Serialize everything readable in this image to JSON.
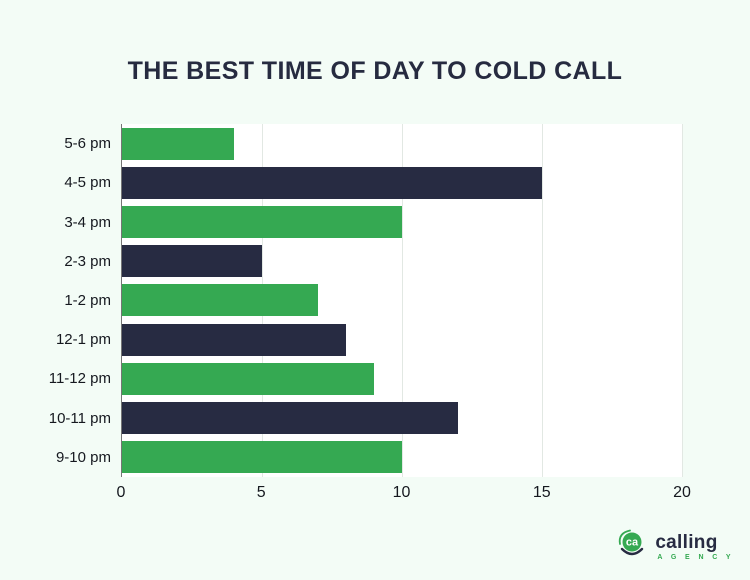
{
  "title": "THE BEST TIME OF DAY TO COLD CALL",
  "chart_data": {
    "type": "bar",
    "orientation": "horizontal",
    "title": "THE BEST TIME OF DAY TO COLD CALL",
    "categories": [
      "5-6 pm",
      "4-5 pm",
      "3-4 pm",
      "2-3 pm",
      "1-2 pm",
      "12-1 pm",
      "11-12 pm",
      "10-11 pm",
      "9-10 pm"
    ],
    "values": [
      4,
      15,
      10,
      5,
      7,
      8,
      9,
      12,
      10
    ],
    "bar_colors": [
      "#35a952",
      "#272b42",
      "#35a952",
      "#272b42",
      "#35a952",
      "#272b42",
      "#35a952",
      "#272b42",
      "#35a952"
    ],
    "xlabel": "",
    "ylabel": "",
    "xlim": [
      0,
      20
    ],
    "x_ticks": [
      0,
      5,
      10,
      15,
      20
    ],
    "grid": "vertical gridlines at x ticks",
    "legend": "none",
    "plot_background": "#ffffff",
    "page_background": "#f3fcf6"
  },
  "colors": {
    "green": "#35a952",
    "navy": "#272b42",
    "title_text": "#262b40",
    "axis_text": "#15181f",
    "gridline": "#e2e8e3",
    "axis_line": "#757575"
  },
  "logo": {
    "icon_text": "ca",
    "name": "calling",
    "subtitle": "A G E N C Y"
  }
}
